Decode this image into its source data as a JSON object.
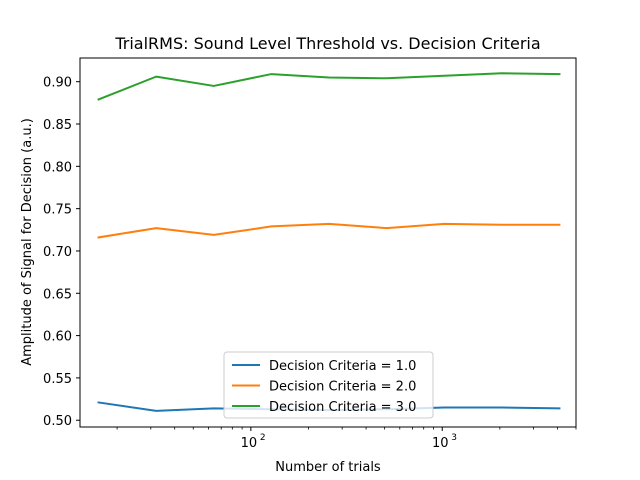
{
  "chart_data": {
    "type": "line",
    "title": "TrialRMS: Sound Level Threshold vs. Decision Criteria",
    "xlabel": "Number of trials",
    "ylabel": "Amplitude of Signal for Decision (a.u.)",
    "xscale": "log",
    "xlim": [
      12.8,
      5000
    ],
    "ylim": [
      0.492,
      0.928
    ],
    "x": [
      16,
      32,
      64,
      128,
      256,
      512,
      1024,
      2048,
      4096
    ],
    "x_ticks": [
      {
        "value": 100,
        "base": "10",
        "exp": "2"
      },
      {
        "value": 1000,
        "base": "10",
        "exp": "3"
      }
    ],
    "y_ticks": [
      {
        "value": 0.5,
        "label": "0.50"
      },
      {
        "value": 0.55,
        "label": "0.55"
      },
      {
        "value": 0.6,
        "label": "0.60"
      },
      {
        "value": 0.65,
        "label": "0.65"
      },
      {
        "value": 0.7,
        "label": "0.70"
      },
      {
        "value": 0.75,
        "label": "0.75"
      },
      {
        "value": 0.8,
        "label": "0.80"
      },
      {
        "value": 0.85,
        "label": "0.85"
      },
      {
        "value": 0.9,
        "label": "0.90"
      }
    ],
    "series": [
      {
        "name": "Decision Criteria = 1.0",
        "color": "#1f77b4",
        "values": [
          0.521,
          0.511,
          0.514,
          0.513,
          0.512,
          0.513,
          0.515,
          0.515,
          0.514
        ]
      },
      {
        "name": "Decision Criteria = 2.0",
        "color": "#ff7f0e",
        "values": [
          0.716,
          0.727,
          0.719,
          0.729,
          0.732,
          0.727,
          0.732,
          0.731,
          0.731
        ]
      },
      {
        "name": "Decision Criteria = 3.0",
        "color": "#2ca02c",
        "values": [
          0.879,
          0.906,
          0.895,
          0.909,
          0.905,
          0.904,
          0.907,
          0.91,
          0.909
        ]
      }
    ],
    "grid": false,
    "legend_position": "lower-center"
  }
}
